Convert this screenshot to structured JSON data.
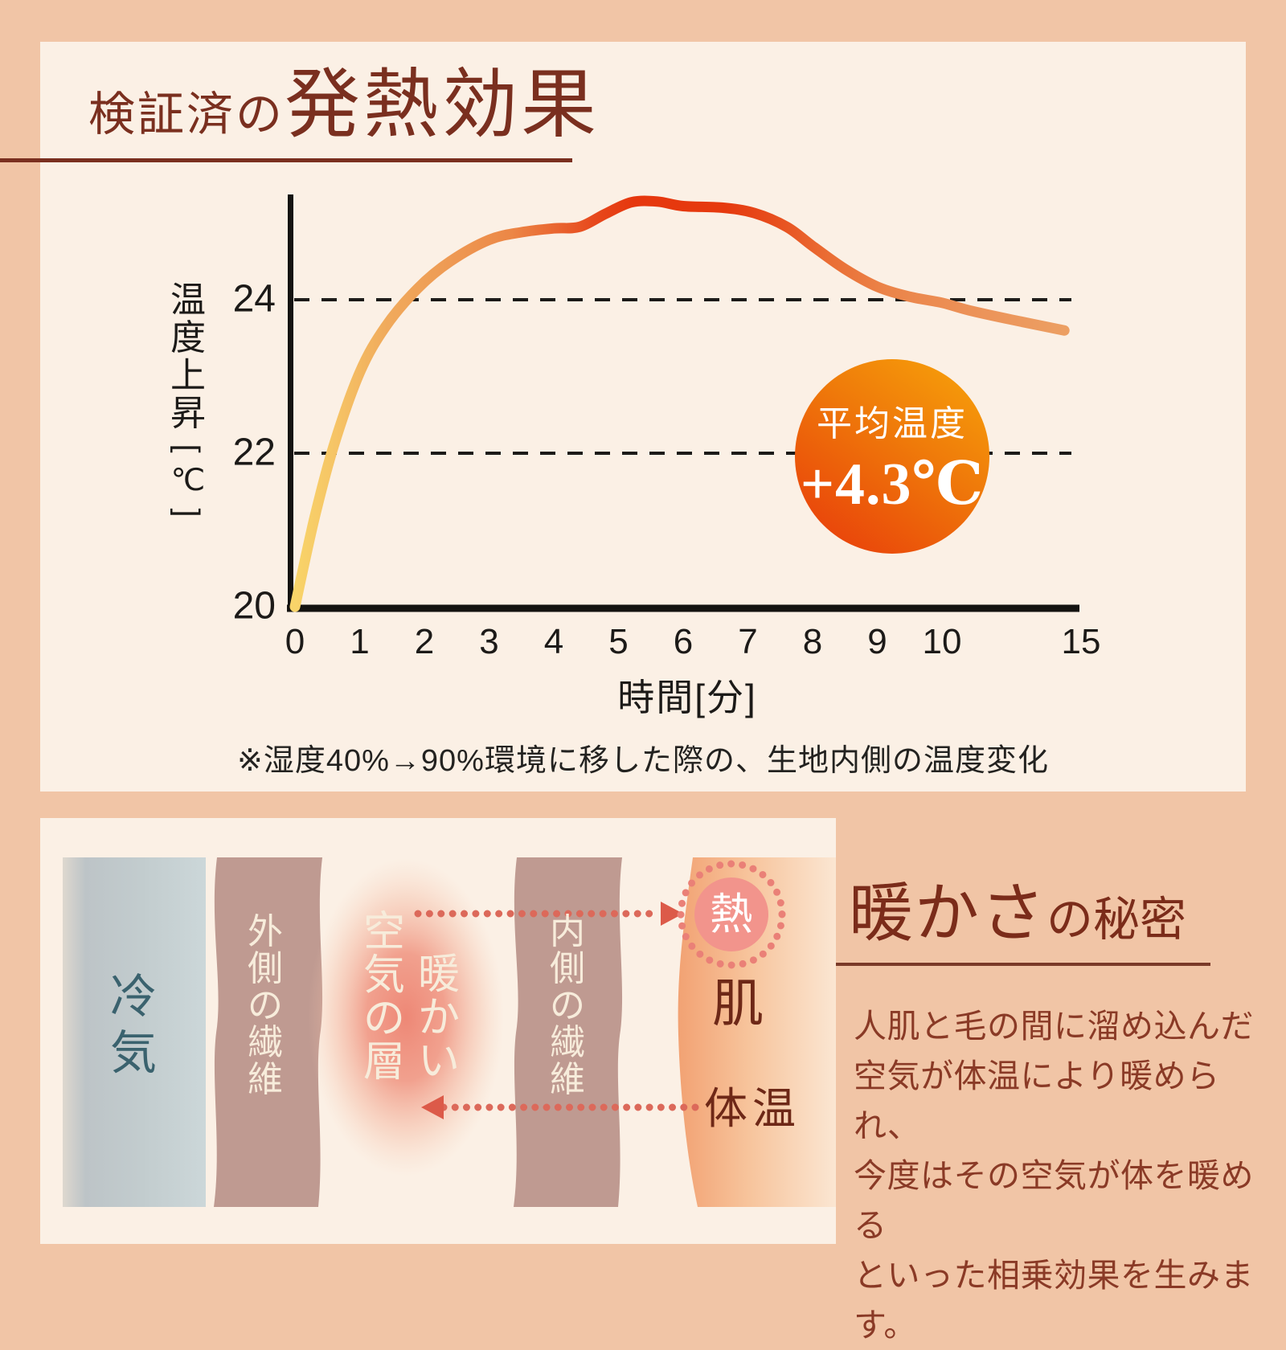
{
  "colors": {
    "background": "#f1c5a6",
    "card": "#fbf0e5",
    "title": "#7a2f1f",
    "axis_ink": "#1c1a18",
    "badge_top": "#f8a50a",
    "badge_bottom": "#e8380b",
    "fiber_band": "#bf9a91",
    "cold_text": "#3a626e",
    "cream_text": "#f7ecdb",
    "skin_text": "#6e2817",
    "paragraph": "#8a3a26",
    "curve_stops": [
      [
        0,
        "#f8d469"
      ],
      [
        0.05,
        "#f6c566"
      ],
      [
        0.12,
        "#f0aa5c"
      ],
      [
        0.2,
        "#ee9a54"
      ],
      [
        0.28,
        "#ec8746"
      ],
      [
        0.34,
        "#e96530"
      ],
      [
        0.39,
        "#e7481c"
      ],
      [
        0.44,
        "#e6370e"
      ],
      [
        0.56,
        "#e63a0f"
      ],
      [
        0.62,
        "#e74d1d"
      ],
      [
        0.69,
        "#ea6c33"
      ],
      [
        0.77,
        "#eb8449"
      ],
      [
        0.88,
        "#ec9258"
      ],
      [
        1,
        "#ec9f63"
      ]
    ]
  },
  "header": {
    "title_small": "検証済の",
    "title_large": "発熱効果"
  },
  "chart_data": {
    "type": "line",
    "title": "検証済の発熱効果",
    "xlabel": "時間[分]",
    "ylabel": "温度上昇[℃]",
    "x_ticks": [
      0,
      1,
      2,
      3,
      4,
      5,
      6,
      7,
      8,
      9,
      10,
      15
    ],
    "y_ticks": [
      20,
      22,
      24
    ],
    "ylim": [
      20,
      25.6
    ],
    "xlim": [
      0,
      15
    ],
    "grid": "dashed horizontal lines at 22 and 24",
    "axis_note": "x axis compressed between 10 and 15",
    "series": [
      {
        "name": "生地内側の温度",
        "points": [
          [
            0,
            20.0
          ],
          [
            0.3,
            21.15
          ],
          [
            0.6,
            22.1
          ],
          [
            1,
            23.05
          ],
          [
            1.4,
            23.65
          ],
          [
            1.9,
            24.15
          ],
          [
            2.4,
            24.5
          ],
          [
            3,
            24.78
          ],
          [
            3.5,
            24.88
          ],
          [
            4,
            24.93
          ],
          [
            4.4,
            24.95
          ],
          [
            4.8,
            25.12
          ],
          [
            5.2,
            25.27
          ],
          [
            5.6,
            25.28
          ],
          [
            6,
            25.22
          ],
          [
            6.6,
            25.2
          ],
          [
            7.1,
            25.13
          ],
          [
            7.6,
            24.95
          ],
          [
            8,
            24.7
          ],
          [
            8.5,
            24.4
          ],
          [
            9,
            24.17
          ],
          [
            9.5,
            24.04
          ],
          [
            10,
            23.96
          ],
          [
            11,
            23.86
          ],
          [
            12.5,
            23.74
          ],
          [
            14.4,
            23.6
          ]
        ]
      }
    ],
    "annotation": {
      "line1": "平均温度",
      "line2": "+4.3℃"
    }
  },
  "footnote": "※湿度40%→90%環境に移した際の、生地内側の温度変化",
  "diagram": {
    "cold_air": "冷気",
    "outer_fiber": "外側の繊維",
    "warm_air_col_left": "空気の層",
    "warm_air_col_right": "暖かい",
    "inner_fiber": "内側の繊維",
    "heat": "熱",
    "skin": "肌",
    "body_temp": "体温"
  },
  "right_section": {
    "title_large": "暖かさ",
    "title_small": "の秘密",
    "lines": [
      "人肌と毛の間に溜め込んだ",
      "空気が体温により暖められ、",
      "今度はその空気が体を暖める",
      "といった相乗効果を生みます。"
    ]
  }
}
